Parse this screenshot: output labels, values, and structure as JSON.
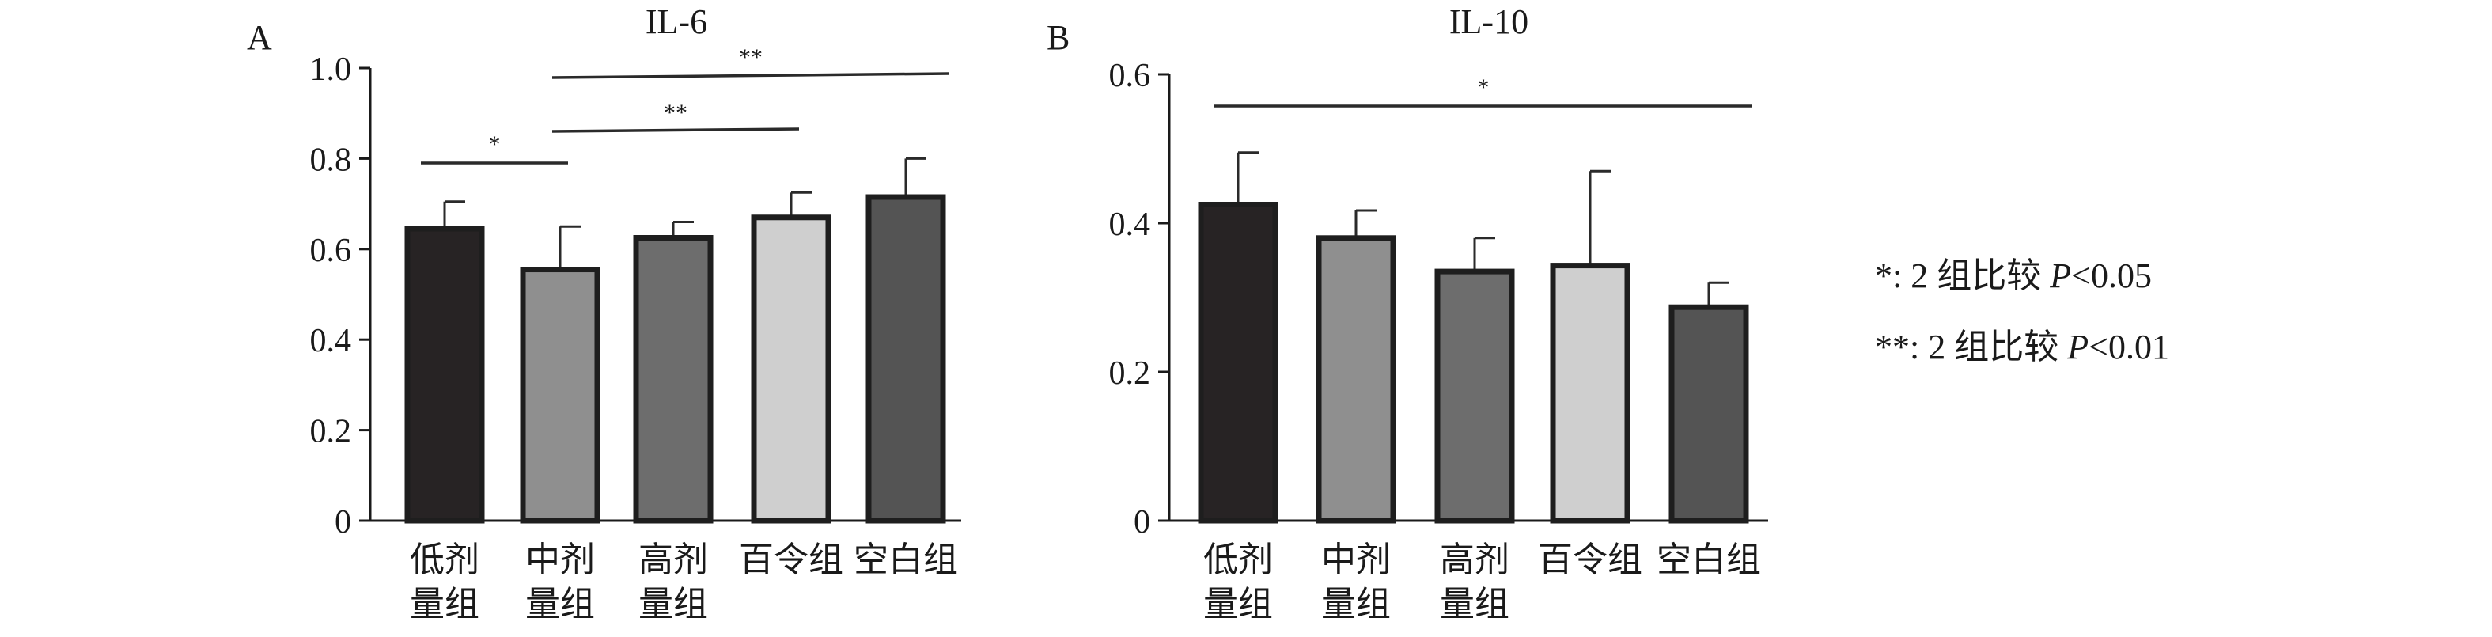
{
  "chart_data": [
    {
      "panel_label": "A",
      "type": "bar",
      "title": "IL-6",
      "xlabel": "",
      "ylabel": "",
      "categories": [
        [
          "低剂",
          "量组"
        ],
        [
          "中剂",
          "量组"
        ],
        [
          "高剂",
          "量组"
        ],
        [
          "百令组"
        ],
        [
          "空白组"
        ]
      ],
      "values": [
        0.645,
        0.555,
        0.625,
        0.67,
        0.715
      ],
      "error": [
        0.06,
        0.095,
        0.035,
        0.055,
        0.085
      ],
      "bar_colors": [
        "#272324",
        "#8f8f8f",
        "#6d6d6d",
        "#cfcfcf",
        "#545454"
      ],
      "ylim": [
        0,
        1.0
      ],
      "yticks": [
        "0",
        "0.2",
        "0.4",
        "0.6",
        "0.8",
        "1.0"
      ],
      "significance": [
        {
          "from": 0,
          "to": 1,
          "label": "*"
        },
        {
          "from": 1,
          "to": 3,
          "label": "**"
        },
        {
          "from": 1,
          "to": 4,
          "label": "**"
        }
      ]
    },
    {
      "panel_label": "B",
      "type": "bar",
      "title": "IL-10",
      "xlabel": "",
      "ylabel": "",
      "categories": [
        [
          "低剂",
          "量组"
        ],
        [
          "中剂",
          "量组"
        ],
        [
          "高剂",
          "量组"
        ],
        [
          "百令组"
        ],
        [
          "空白组"
        ]
      ],
      "values": [
        0.425,
        0.38,
        0.335,
        0.343,
        0.287
      ],
      "error": [
        0.07,
        0.037,
        0.045,
        0.127,
        0.033
      ],
      "bar_colors": [
        "#272324",
        "#8f8f8f",
        "#6d6d6d",
        "#cfcfcf",
        "#545454"
      ],
      "ylim": [
        0,
        0.6
      ],
      "yticks": [
        "0",
        "0.2",
        "0.4",
        "0.6"
      ],
      "significance": [
        {
          "from": 0,
          "to": 4,
          "label": "*"
        }
      ]
    }
  ],
  "legend": {
    "line1": {
      "prefix": "*: 2 组比较 ",
      "p": "P",
      "suffix": "<0.05"
    },
    "line2": {
      "prefix": "**: 2 组比较 ",
      "p": "P",
      "suffix": "<0.01"
    }
  }
}
